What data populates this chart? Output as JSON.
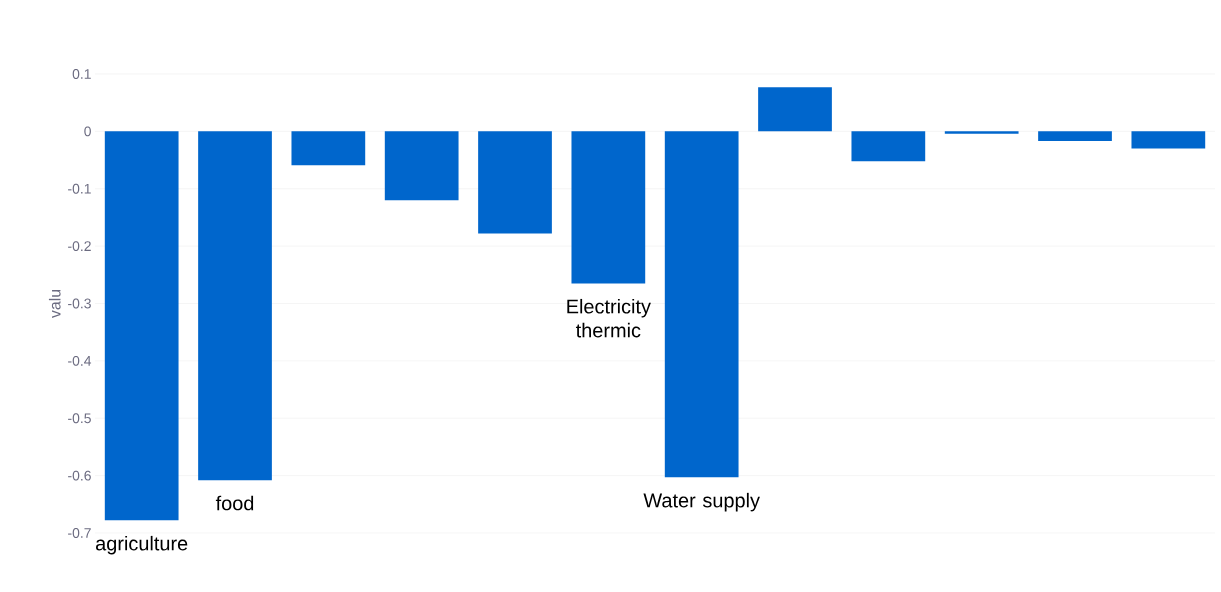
{
  "chart_data": {
    "type": "bar",
    "ylabel": "valu",
    "categories": [
      "agriculture",
      "food",
      null,
      null,
      null,
      "Electricity thermic",
      "Water supply",
      null,
      null,
      null,
      null,
      null
    ],
    "values": [
      -0.678,
      -0.608,
      -0.059,
      -0.12,
      -0.178,
      -0.265,
      -0.603,
      0.077,
      -0.052,
      -0.004,
      -0.017,
      -0.03
    ],
    "color": "#0066cc",
    "ylim": [
      -0.7,
      0.1
    ],
    "yticks": [
      -0.7,
      -0.6,
      -0.5,
      -0.4,
      -0.3,
      -0.2,
      -0.1,
      0,
      0.1
    ],
    "grid": "y"
  }
}
